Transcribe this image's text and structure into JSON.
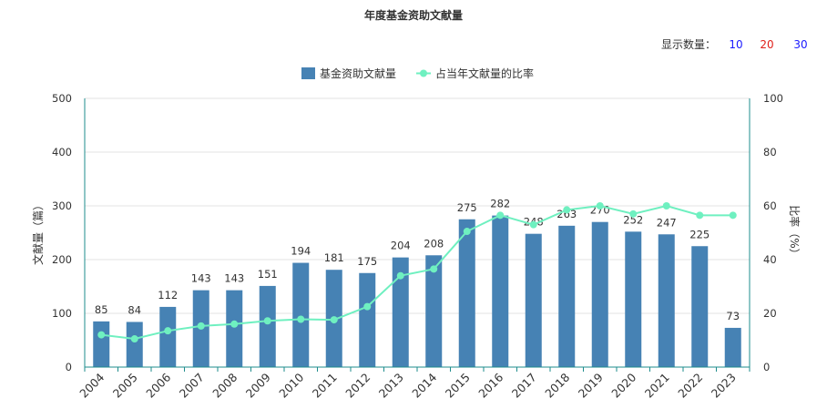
{
  "page_title": "年度基金资助文献量",
  "controls": {
    "display_count_label": "显示数量：",
    "options": [
      {
        "label": "10",
        "color": "#1a1aff"
      },
      {
        "label": "20",
        "color": "#e0201a"
      },
      {
        "label": "30",
        "color": "#1a1aff"
      }
    ]
  },
  "chart_data": {
    "type": "bar",
    "title": "年度基金资助文献量",
    "categories": [
      "2004",
      "2005",
      "2006",
      "2007",
      "2008",
      "2009",
      "2010",
      "2011",
      "2012",
      "2013",
      "2014",
      "2015",
      "2016",
      "2017",
      "2018",
      "2019",
      "2020",
      "2021",
      "2022",
      "2023"
    ],
    "series": [
      {
        "name": "基金资助文献量",
        "type": "bar",
        "axis": "left",
        "color": "#4682b4",
        "values": [
          85,
          84,
          112,
          143,
          143,
          151,
          194,
          181,
          175,
          204,
          208,
          275,
          282,
          248,
          263,
          270,
          252,
          247,
          225,
          73
        ]
      },
      {
        "name": "占当年文献量的比率",
        "type": "line",
        "axis": "right",
        "color": "#6ff0c0",
        "values": [
          12,
          10.5,
          13.5,
          15.3,
          16,
          17.2,
          17.8,
          17.6,
          22.5,
          34,
          36.5,
          50.5,
          56.5,
          53,
          58.5,
          60,
          57,
          60,
          56.5,
          56.5
        ]
      }
    ],
    "ylabel_left": "文献量（篇）",
    "ylabel_right": "比率（%）",
    "ylim_left": [
      0,
      500
    ],
    "ylim_right": [
      0,
      100
    ],
    "yticks_left": [
      "0",
      "100",
      "200",
      "300",
      "400",
      "500"
    ],
    "yticks_right": [
      "0",
      "20",
      "40",
      "60",
      "80",
      "100"
    ],
    "grid": true,
    "legend_position": "top-center"
  }
}
